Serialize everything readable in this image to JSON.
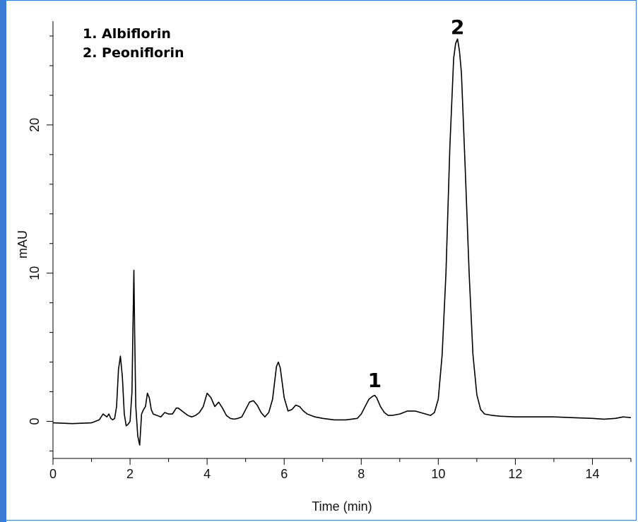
{
  "chart_data": {
    "type": "line",
    "xlabel": "Time (min)",
    "ylabel": "mAU",
    "xlim": [
      0,
      15
    ],
    "ylim": [
      -2.5,
      27
    ],
    "x_ticks": [
      "0",
      "2",
      "4",
      "6",
      "8",
      "10",
      "12",
      "14"
    ],
    "y_ticks": [
      "0",
      "10",
      "20"
    ],
    "grid": false,
    "legend": {
      "placement": "top-left",
      "entries": [
        "1. Albiflorin",
        "2. Peoniflorin"
      ]
    },
    "peak_labels": [
      {
        "text": "1",
        "x": 8.35,
        "y": 2.8
      },
      {
        "text": "2",
        "x": 10.5,
        "y": 26.8
      }
    ],
    "series": [
      {
        "x": [
          0,
          0.5,
          1.0,
          1.1,
          1.2,
          1.3,
          1.35,
          1.4,
          1.45,
          1.5,
          1.55,
          1.6,
          1.65,
          1.7,
          1.75,
          1.8,
          1.85,
          1.9,
          1.95,
          2.0,
          2.05,
          2.08,
          2.1,
          2.12,
          2.15,
          2.2,
          2.25,
          2.3,
          2.35,
          2.4,
          2.45,
          2.5,
          2.55,
          2.6,
          2.7,
          2.8,
          2.9,
          3.0,
          3.1,
          3.2,
          3.25,
          3.3,
          3.4,
          3.5,
          3.6,
          3.7,
          3.8,
          3.9,
          4.0,
          4.1,
          4.2,
          4.3,
          4.4,
          4.5,
          4.6,
          4.7,
          4.8,
          4.9,
          5.0,
          5.1,
          5.2,
          5.3,
          5.4,
          5.5,
          5.6,
          5.7,
          5.8,
          5.85,
          5.9,
          6.0,
          6.1,
          6.2,
          6.3,
          6.4,
          6.5,
          6.6,
          6.8,
          7.0,
          7.3,
          7.6,
          7.9,
          8.0,
          8.1,
          8.2,
          8.3,
          8.35,
          8.4,
          8.5,
          8.6,
          8.7,
          8.8,
          9.0,
          9.2,
          9.4,
          9.6,
          9.8,
          9.9,
          10.0,
          10.1,
          10.2,
          10.3,
          10.4,
          10.45,
          10.5,
          10.55,
          10.6,
          10.7,
          10.8,
          10.9,
          11.0,
          11.1,
          11.2,
          11.4,
          11.6,
          12.0,
          12.5,
          13.0,
          13.5,
          14.0,
          14.3,
          14.6,
          14.8,
          15.0
        ],
        "y": [
          -0.1,
          -0.15,
          -0.1,
          0.0,
          0.1,
          0.5,
          0.4,
          0.3,
          0.5,
          0.2,
          0.1,
          0.2,
          1.0,
          3.5,
          4.4,
          3.0,
          0.5,
          -0.3,
          -0.2,
          0.0,
          2.0,
          7.0,
          10.2,
          6.0,
          1.0,
          -1.0,
          -1.6,
          0.5,
          0.8,
          1.0,
          1.9,
          1.6,
          0.8,
          0.5,
          0.4,
          0.3,
          0.6,
          0.5,
          0.5,
          0.9,
          0.9,
          0.8,
          0.6,
          0.4,
          0.3,
          0.4,
          0.6,
          1.0,
          1.9,
          1.6,
          1.0,
          1.3,
          0.9,
          0.4,
          0.2,
          0.15,
          0.2,
          0.3,
          0.8,
          1.3,
          1.4,
          1.1,
          0.6,
          0.3,
          0.6,
          1.5,
          3.7,
          4.0,
          3.6,
          1.6,
          0.7,
          0.8,
          1.1,
          1.0,
          0.7,
          0.5,
          0.3,
          0.2,
          0.1,
          0.1,
          0.2,
          0.5,
          1.0,
          1.5,
          1.7,
          1.75,
          1.6,
          1.0,
          0.6,
          0.4,
          0.4,
          0.5,
          0.7,
          0.7,
          0.55,
          0.4,
          0.6,
          1.5,
          4.5,
          10.0,
          18.5,
          24.5,
          25.5,
          25.8,
          25.0,
          23.5,
          17.0,
          10.0,
          4.5,
          1.8,
          0.8,
          0.5,
          0.4,
          0.35,
          0.3,
          0.3,
          0.3,
          0.25,
          0.2,
          0.15,
          0.2,
          0.3,
          0.25
        ]
      }
    ]
  }
}
